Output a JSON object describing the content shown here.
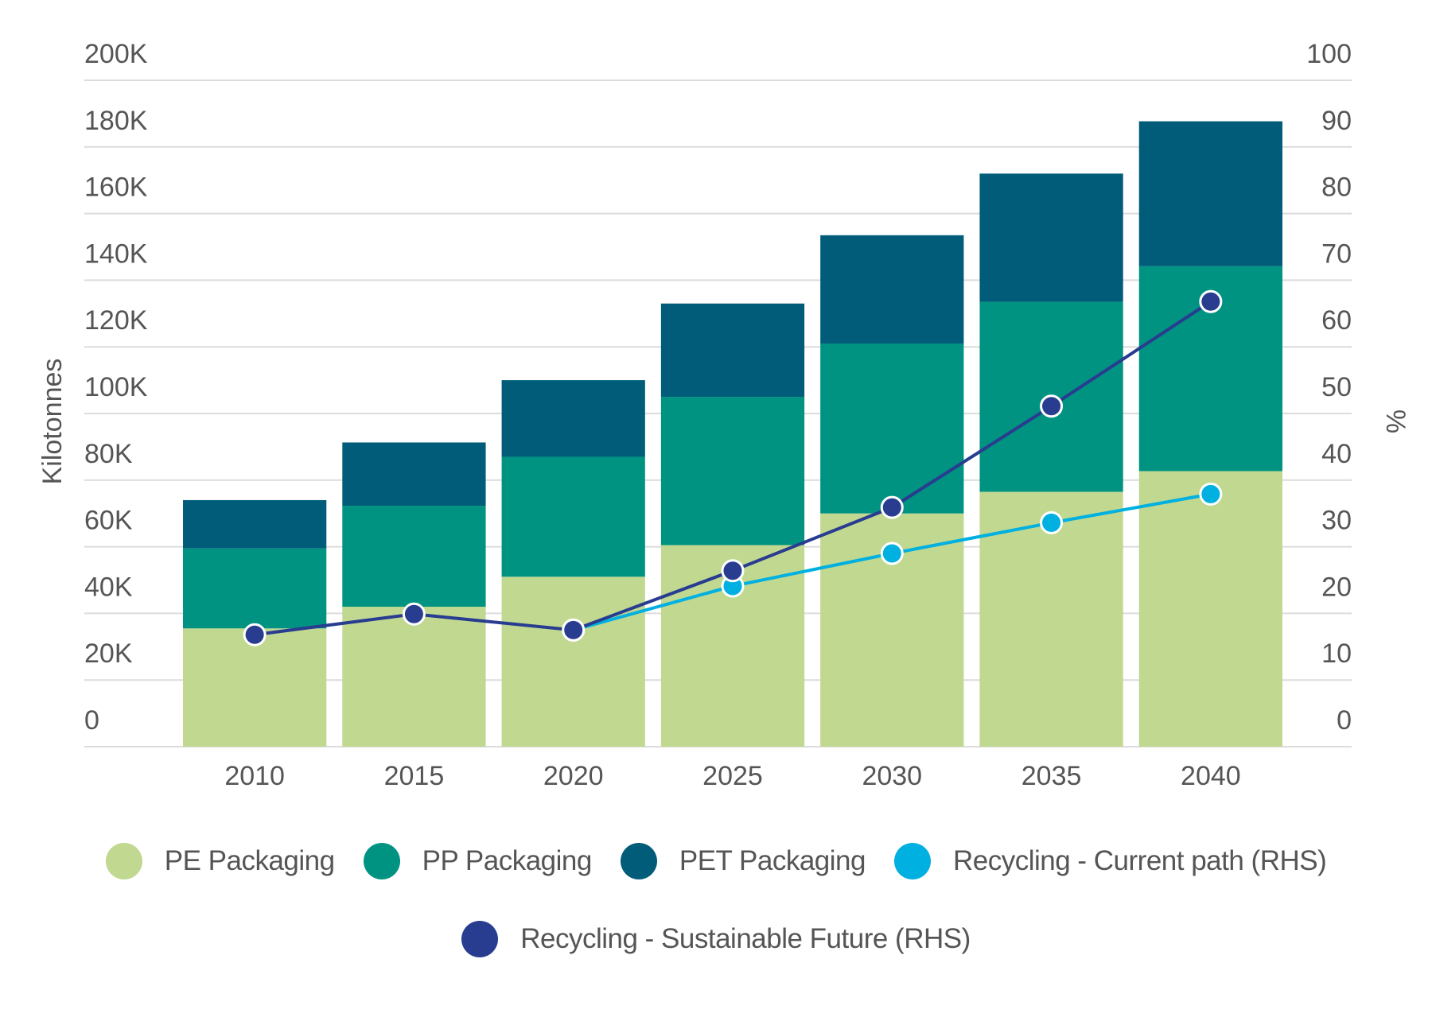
{
  "chart_data": {
    "type": "bar",
    "stacked": true,
    "y_label": "Kilotonnes",
    "y2_label": "%",
    "categories": [
      "2010",
      "2015",
      "2020",
      "2025",
      "2030",
      "2035",
      "2040"
    ],
    "series": [
      {
        "name": "PE Packaging",
        "type": "bar",
        "color": "#c0d890",
        "values": [
          35500,
          42000,
          51000,
          60500,
          70000,
          76500,
          82700
        ]
      },
      {
        "name": "PP Packaging",
        "type": "bar",
        "color": "#009382",
        "values": [
          24000,
          30300,
          36000,
          44500,
          51000,
          57000,
          61500
        ]
      },
      {
        "name": "PET Packaging",
        "type": "bar",
        "color": "#005c78",
        "values": [
          14500,
          19000,
          23000,
          28000,
          32500,
          38500,
          43500
        ]
      },
      {
        "name": "Recycling - Current path (RHS)",
        "type": "line",
        "axis": "y2",
        "color": "#00b0e0",
        "values": [
          null,
          null,
          17.5,
          24.1,
          29.0,
          33.6,
          37.9
        ]
      },
      {
        "name": "Recycling - Sustainable Future (RHS)",
        "type": "line",
        "axis": "y2",
        "color": "#283c90",
        "values": [
          16.8,
          19.9,
          17.5,
          26.4,
          35.9,
          51.1,
          66.8
        ]
      }
    ],
    "ylim": [
      0,
      200000
    ],
    "yticks": [
      {
        "value": 0,
        "label": "0"
      },
      {
        "value": 20000,
        "label": "20K"
      },
      {
        "value": 40000,
        "label": "40K"
      },
      {
        "value": 60000,
        "label": "60K"
      },
      {
        "value": 80000,
        "label": "80K"
      },
      {
        "value": 100000,
        "label": "100K"
      },
      {
        "value": 120000,
        "label": "120K"
      },
      {
        "value": 140000,
        "label": "140K"
      },
      {
        "value": 160000,
        "label": "160K"
      },
      {
        "value": 180000,
        "label": "180K"
      },
      {
        "value": 200000,
        "label": "200K"
      }
    ],
    "y2lim": [
      0,
      100
    ],
    "y2ticks": [
      0,
      10,
      20,
      30,
      40,
      50,
      60,
      70,
      80,
      90,
      100
    ],
    "grid": true
  }
}
